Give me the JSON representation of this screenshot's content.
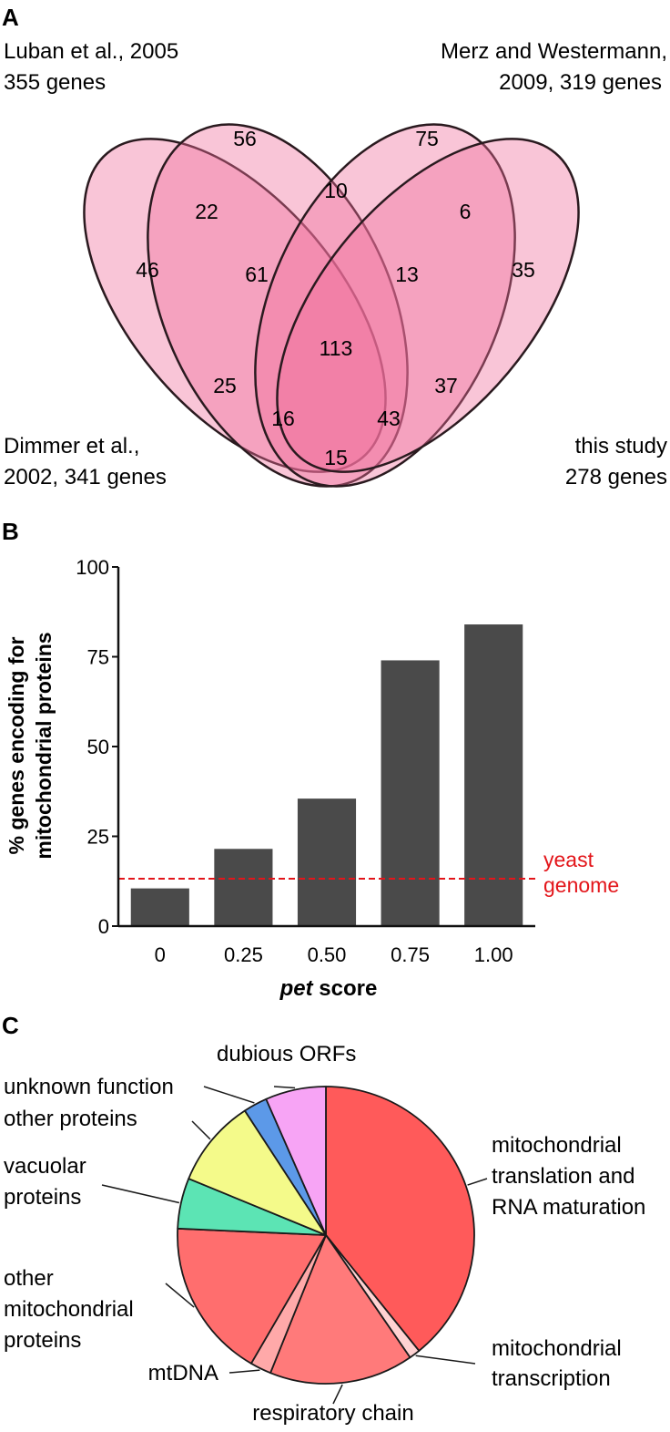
{
  "panels": {
    "a": "A",
    "b": "B",
    "c": "C"
  },
  "venn": {
    "sets": [
      {
        "line1": "Luban et al., 2005",
        "line2": "355 genes"
      },
      {
        "line1": "Merz and Westermann,",
        "line2": "2009, 319 genes"
      },
      {
        "line1": "Dimmer et al.,",
        "line2": "2002, 341 genes"
      },
      {
        "line1": "this study",
        "line2": "278 genes"
      }
    ],
    "colors": {
      "fill": "#f06f9a",
      "stroke": "#2a1a1f"
    },
    "regions": {
      "dimmer_only": "46",
      "luban_only": "56",
      "merz_only": "75",
      "study_only": "35",
      "dimmer_luban": "22",
      "luban_merz": "10",
      "merz_study": "6",
      "dimmer_luban_merz": "61",
      "luban_merz_study": "13",
      "all_four": "113",
      "dimmer_merz": "25",
      "luban_study": "37",
      "dimmer_merz_study": "16",
      "dimmer_luban_study": "43",
      "dimmer_study": "15"
    }
  },
  "chart_data": [
    {
      "type": "bar",
      "categories": [
        "0",
        "0.25",
        "0.50",
        "0.75",
        "1.00"
      ],
      "values": [
        10.5,
        21.5,
        35.5,
        74,
        84
      ],
      "ylim": [
        0,
        100
      ],
      "yticks": [
        "0",
        "25",
        "50",
        "75",
        "100"
      ],
      "xlabel_italic": "pet",
      "xlabel_rest": " score",
      "ylabel_line1": "% genes encoding for",
      "ylabel_line2": "mitochondrial proteins",
      "reference_line": {
        "value": 13.2,
        "label_line1": "yeast",
        "label_line2": "genome",
        "color": "#e3151a"
      },
      "bar_color": "#4a4a4a"
    },
    {
      "type": "pie",
      "start": "12 o'clock, clockwise",
      "slices": [
        {
          "label": [
            "mitochondrial",
            "translation and",
            "RNA maturation"
          ],
          "value": 39.2,
          "color": "#ff5a5a"
        },
        {
          "label": [
            "mitochondrial",
            "transcription"
          ],
          "value": 1.2,
          "color": "#ffd2d2"
        },
        {
          "label": [
            "respiratory chain"
          ],
          "value": 15.7,
          "color": "#ff7a7a"
        },
        {
          "label": [
            "mtDNA"
          ],
          "value": 2.3,
          "color": "#ffa9a9"
        },
        {
          "label": [
            "other",
            "mitochondrial",
            "proteins"
          ],
          "value": 17.3,
          "color": "#ff6e6e"
        },
        {
          "label": [
            "vacuolar",
            "proteins"
          ],
          "value": 5.5,
          "color": "#5ce4b4"
        },
        {
          "label": [
            "other proteins"
          ],
          "value": 9.6,
          "color": "#f4fa8a"
        },
        {
          "label": [
            "unknown function"
          ],
          "value": 2.6,
          "color": "#5c99e8"
        },
        {
          "label": [
            "dubious ORFs"
          ],
          "value": 6.6,
          "color": "#f7a4f5"
        }
      ]
    }
  ]
}
